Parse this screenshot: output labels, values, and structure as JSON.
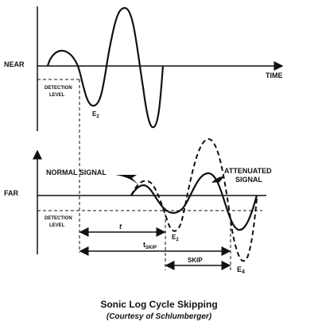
{
  "near": {
    "label": "NEAR",
    "axis_label": "TIME",
    "detection": [
      "DETECTION",
      "LEVEL"
    ],
    "event": {
      "base": "E",
      "sub": "2"
    }
  },
  "far": {
    "label": "FAR",
    "normal": [
      "NORMAL",
      "SIGNAL"
    ],
    "attenuated": [
      "ATTENUATED",
      "SIGNAL"
    ],
    "detection": [
      "DETECTION",
      "LEVEL"
    ],
    "t": "t",
    "t_skip": {
      "base": "t",
      "sub": "SKIP"
    },
    "skip": "SKIP",
    "event_normal": {
      "base": "E",
      "sub": "2"
    },
    "event_skip": {
      "base": "E",
      "sub": "4"
    }
  },
  "caption": {
    "title": "Sonic Log Cycle Skipping",
    "credit": "(Courtesy of Schlumberger)"
  }
}
